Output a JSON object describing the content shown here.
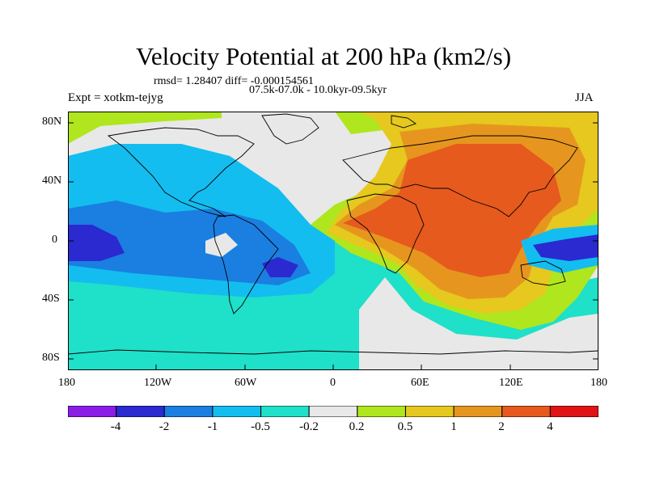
{
  "header": {
    "title": "Velocity Potential at 200 hPa (km2/s)",
    "stats": "rmsd= 1.28407 diff= -0.000154561",
    "period": "07.5k-07.0k - 10.0kyr-09.5kyr",
    "experiment": "Expt = xotkm-tejyg",
    "season": "JJA"
  },
  "map": {
    "projection": "cylindrical-equidistant",
    "lon_range": [
      -180,
      180
    ],
    "lat_range": [
      -90,
      90
    ],
    "x_tick_labels": [
      "180",
      "120W",
      "60W",
      "0",
      "60E",
      "120E",
      "180"
    ],
    "y_tick_labels": [
      "80N",
      "40N",
      "0",
      "40S",
      "80S"
    ]
  },
  "colorbar": {
    "labels": [
      "-4",
      "-2",
      "-1",
      "-0.5",
      "-0.2",
      "0.2",
      "0.5",
      "1",
      "2",
      "4"
    ],
    "colors": [
      "#8a1ee6",
      "#2a2ad0",
      "#1a7fe0",
      "#14bdf0",
      "#1fe0c8",
      "#e8e8e8",
      "#b0e61e",
      "#e6c81e",
      "#e6961e",
      "#e65a1e",
      "#e01414"
    ]
  }
}
